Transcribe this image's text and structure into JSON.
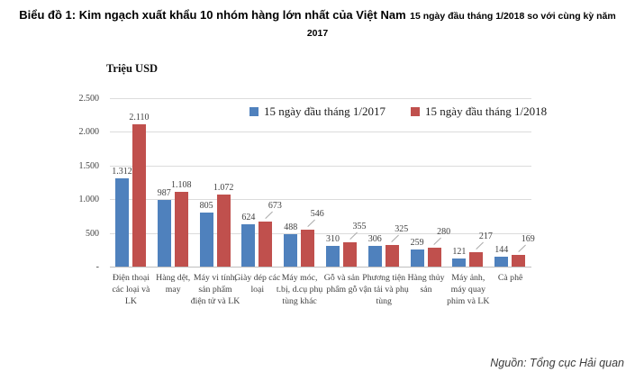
{
  "title": {
    "line1_main": "Biểu đồ 1: Kim ngạch xuất khẩu 10 nhóm hàng lớn nhất của Việt Nam",
    "line1_sub": "15 ngày đầu tháng 1/2018 so với cùng kỳ năm",
    "line2": "2017"
  },
  "source": "Nguồn: Tổng cục Hải quan",
  "chart_data": {
    "type": "bar",
    "title": "Kim ngạch xuất khẩu 10 nhóm hàng lớn nhất của Việt Nam 15 ngày đầu tháng 1/2018 so với cùng kỳ năm 2017",
    "ylabel": "Triệu USD",
    "xlabel": "",
    "ylim": [
      0,
      2500
    ],
    "grid": true,
    "legend_position": "top-center",
    "yticks": [
      {
        "label": "-",
        "value": 0
      },
      {
        "label": "500",
        "value": 500
      },
      {
        "label": "1.000",
        "value": 1000
      },
      {
        "label": "1.500",
        "value": 1500
      },
      {
        "label": "2.000",
        "value": 2000
      },
      {
        "label": "2.500",
        "value": 2500
      }
    ],
    "categories": [
      "Điện thoại các loại và LK",
      "Hàng dệt, may",
      "Máy vi tính, sản phẩm điện tử và LK",
      "Giày dép các loại",
      "Máy móc, t.bị, d.cụ phụ tùng khác",
      "Gỗ và sản phẩm gỗ",
      "Phương tiện vận tải và phụ tùng",
      "Hàng thủy sản",
      "Máy ảnh, máy quay phim và LK",
      "Cà phê"
    ],
    "series": [
      {
        "name": "15 ngày đầu tháng 1/2017",
        "color": "#4F81BD",
        "values": [
          1312,
          987,
          805,
          624,
          488,
          310,
          306,
          259,
          121,
          144
        ],
        "labels": [
          "1.312",
          "987",
          "805",
          "624",
          "488",
          "310",
          "306",
          "259",
          "121",
          "144"
        ]
      },
      {
        "name": "15 ngày đầu tháng 1/2018",
        "color": "#C0504D",
        "values": [
          2110,
          1108,
          1072,
          673,
          546,
          355,
          325,
          280,
          217,
          169
        ],
        "labels": [
          "2.110",
          "1.108",
          "1.072",
          "673",
          "546",
          "355",
          "325",
          "280",
          "217",
          "169"
        ]
      }
    ]
  }
}
